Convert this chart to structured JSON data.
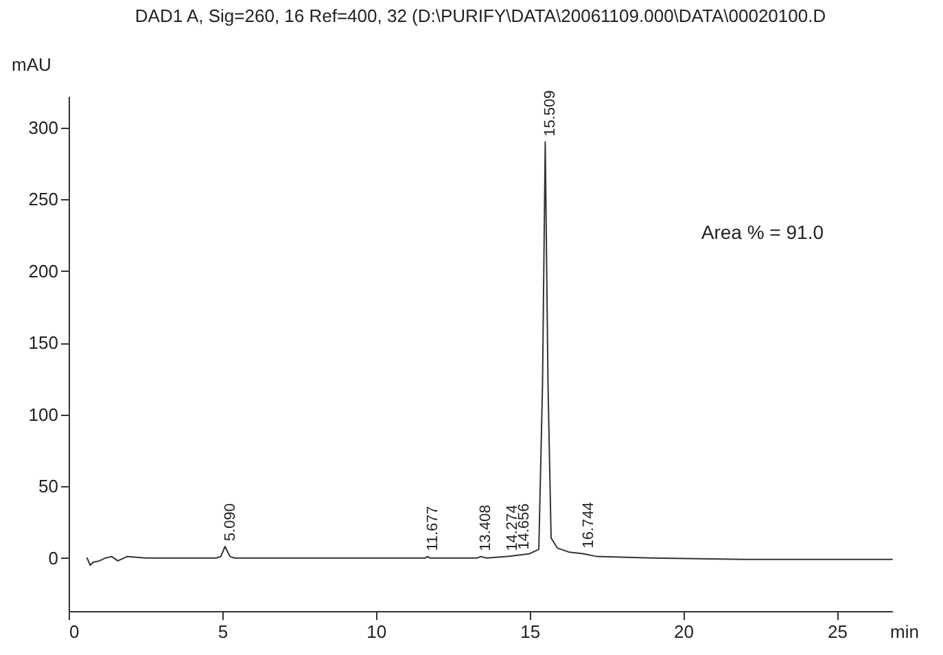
{
  "chart_data": {
    "type": "line",
    "title": "DAD1 A, Sig=260, 16 Ref=400, 32 (D:\\PURIFY\\DATA\\20061109.000\\DATA\\00020100.D",
    "xlabel": "min",
    "ylabel": "mAU",
    "x": [
      0.6,
      0.7,
      0.8,
      1.0,
      1.2,
      1.4,
      1.6,
      1.9,
      2.5,
      4.8,
      4.95,
      5.09,
      5.25,
      5.4,
      8,
      11.6,
      11.677,
      11.75,
      13.3,
      13.408,
      13.6,
      14.274,
      14.656,
      15.0,
      15.3,
      15.42,
      15.509,
      15.6,
      15.7,
      15.9,
      16.3,
      16.744,
      17.2,
      19,
      22,
      26.8
    ],
    "series": [
      {
        "color": "#333333",
        "values": [
          0,
          -5,
          -3,
          -2,
          0,
          1,
          -2,
          1,
          0,
          0,
          1,
          8,
          1,
          0,
          0,
          0,
          1,
          0,
          0,
          1,
          0,
          1,
          2,
          3,
          6,
          120,
          290,
          120,
          14,
          7,
          4,
          3,
          1,
          0,
          -1,
          -1
        ]
      }
    ],
    "xlim": [
      0,
      26.8
    ],
    "ylim": [
      -37,
      322
    ],
    "xticks": [
      0,
      5,
      10,
      15,
      20,
      25
    ],
    "yticks": [
      0,
      50,
      100,
      150,
      200,
      250,
      300
    ],
    "grid": false,
    "annotations": [
      {
        "text": "5.090",
        "x": 5.09,
        "y": 8
      },
      {
        "text": "11.677",
        "x": 11.677,
        "y": 1
      },
      {
        "text": "13.408",
        "x": 13.408,
        "y": 1
      },
      {
        "text": "14.274",
        "x": 14.274,
        "y": 1
      },
      {
        "text": "14.656",
        "x": 14.656,
        "y": 2
      },
      {
        "text": "15.509",
        "x": 15.509,
        "y": 290
      },
      {
        "text": "16.744",
        "x": 16.744,
        "y": 3
      },
      "Area % = 91.0"
    ]
  }
}
